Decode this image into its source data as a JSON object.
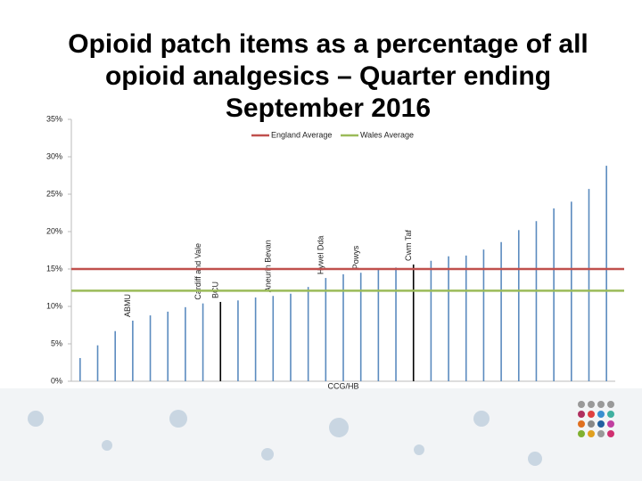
{
  "chart_data": {
    "type": "bar",
    "title": "Opioid patch items as a percentage of all opioid analgesics – Quarter ending September 2016",
    "x_label": "CCG/HB",
    "categories": [
      null,
      null,
      null,
      "ABMU",
      null,
      null,
      null,
      "Cardiff and Vale",
      "BCU",
      null,
      null,
      "Aneurin Bevan",
      null,
      null,
      "Hywel Dda",
      null,
      "Powys",
      null,
      null,
      "Cwm Taf",
      null,
      null,
      null,
      null,
      null,
      null,
      null,
      null,
      null,
      null,
      null
    ],
    "values": [
      3.1,
      4.8,
      6.7,
      8.1,
      8.8,
      9.3,
      9.9,
      10.4,
      10.6,
      10.8,
      11.2,
      11.4,
      11.7,
      12.6,
      13.8,
      14.3,
      14.5,
      15,
      15.2,
      15.6,
      16.1,
      16.7,
      16.8,
      17.6,
      18.6,
      20.2,
      21.4,
      23.1,
      24,
      25.7,
      28.8
    ],
    "colors": [
      "#5b8bbf",
      "#5b8bbf",
      "#5b8bbf",
      "#5b8bbf",
      "#5b8bbf",
      "#5b8bbf",
      "#5b8bbf",
      "#5b8bbf",
      "#000000",
      "#5b8bbf",
      "#5b8bbf",
      "#5b8bbf",
      "#5b8bbf",
      "#5b8bbf",
      "#5b8bbf",
      "#5b8bbf",
      "#5b8bbf",
      "#5b8bbf",
      "#5b8bbf",
      "#000000",
      "#5b8bbf",
      "#5b8bbf",
      "#5b8bbf",
      "#5b8bbf",
      "#5b8bbf",
      "#5b8bbf",
      "#5b8bbf",
      "#5b8bbf",
      "#5b8bbf",
      "#5b8bbf",
      "#5b8bbf"
    ],
    "reference_lines": [
      {
        "name": "England Average",
        "value": 15,
        "color": "#c0504d"
      },
      {
        "name": "Wales Average",
        "value": 12.1,
        "color": "#9bbb59"
      }
    ],
    "ylim": [
      0,
      35
    ],
    "yticks": [
      {
        "value": 0,
        "label": "0%"
      },
      {
        "value": 5,
        "label": "5%"
      },
      {
        "value": 10,
        "label": "10%"
      },
      {
        "value": 15,
        "label": "15%"
      },
      {
        "value": 20,
        "label": "20%"
      },
      {
        "value": 25,
        "label": "25%"
      },
      {
        "value": 30,
        "label": "30%"
      },
      {
        "value": 35,
        "label": "35%"
      }
    ]
  }
}
